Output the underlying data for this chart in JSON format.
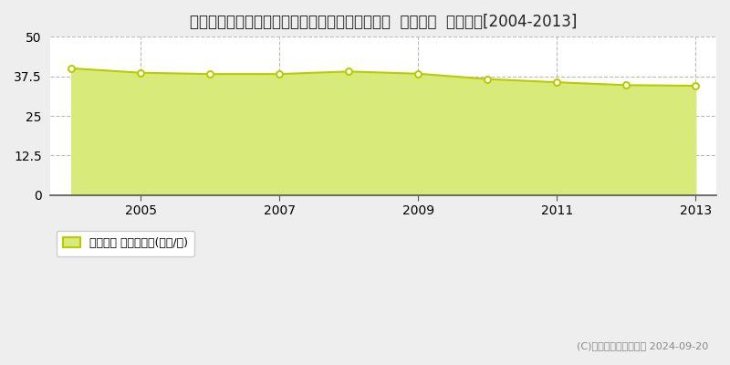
{
  "title": "埼玉県さいたま市見沼区大字御蔵字原前９５番２  公示地価  地価推移[2004-2013]",
  "years": [
    2004,
    2005,
    2006,
    2007,
    2008,
    2009,
    2010,
    2011,
    2012,
    2013
  ],
  "values": [
    40.0,
    38.6,
    38.2,
    38.2,
    39.0,
    38.3,
    36.6,
    35.6,
    34.7,
    34.5
  ],
  "ylim": [
    0,
    50
  ],
  "yticks": [
    0,
    12.5,
    25,
    37.5,
    50
  ],
  "xticks": [
    2005,
    2007,
    2009,
    2011,
    2013
  ],
  "line_color": "#b8cc00",
  "fill_color": "#d8eb7a",
  "marker_facecolor": "#ffffff",
  "marker_edgecolor": "#b8cc00",
  "bg_color": "#eeeeee",
  "plot_bg_color": "#ffffff",
  "grid_color": "#bbbbbb",
  "grid_style": "--",
  "legend_label": "公示地価 平均坪単価(万円/坪)",
  "watermark": "(C)土地価格ドットコム 2024-09-20",
  "title_fontsize": 12,
  "axis_fontsize": 10,
  "legend_fontsize": 9,
  "watermark_fontsize": 8
}
